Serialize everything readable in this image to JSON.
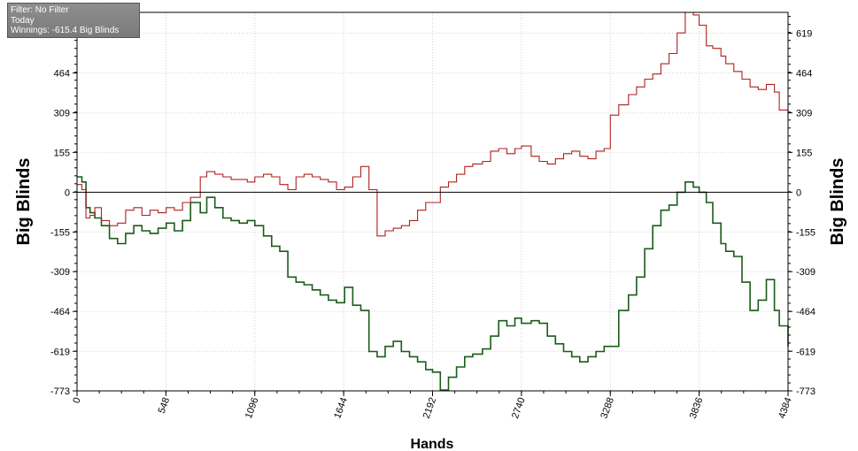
{
  "info_box": {
    "filter": "Filter: No Filter",
    "period": "Today",
    "winnings": "Winnings: -615.4 Big Blinds"
  },
  "colors": {
    "winnings_line": "#1a5c1a",
    "red_line": "#b02020",
    "grid": "#d4d4d4",
    "zero_line": "#000000"
  },
  "chart_data": {
    "type": "line",
    "xlabel": "Hands",
    "ylabel": "Big Blinds",
    "xlim": [
      0,
      4384
    ],
    "ylim": [
      -773,
      700
    ],
    "x_ticks": [
      "0",
      "548",
      "1096",
      "1644",
      "2192",
      "2740",
      "3288",
      "3836",
      "4384"
    ],
    "y_ticks": [
      "619",
      "464",
      "309",
      "155",
      "0",
      "-155",
      "-309",
      "-464",
      "-619",
      "-773"
    ],
    "grid": "dotted",
    "legend": "none",
    "series": [
      {
        "color": "#1a5c1a",
        "x": [
          0,
          30,
          55,
          80,
          110,
          150,
          200,
          250,
          300,
          350,
          400,
          450,
          500,
          550,
          600,
          650,
          700,
          760,
          800,
          850,
          900,
          950,
          1000,
          1050,
          1096,
          1150,
          1200,
          1250,
          1300,
          1350,
          1400,
          1450,
          1500,
          1550,
          1600,
          1650,
          1700,
          1750,
          1800,
          1850,
          1900,
          1950,
          2000,
          2050,
          2100,
          2150,
          2192,
          2240,
          2290,
          2340,
          2390,
          2440,
          2500,
          2550,
          2600,
          2650,
          2700,
          2740,
          2800,
          2850,
          2900,
          2950,
          3000,
          3050,
          3100,
          3150,
          3200,
          3250,
          3288,
          3340,
          3400,
          3450,
          3500,
          3550,
          3600,
          3650,
          3700,
          3750,
          3800,
          3836,
          3880,
          3920,
          3970,
          4000,
          4050,
          4100,
          4150,
          4200,
          4250,
          4300,
          4330,
          4384
        ],
        "y": [
          60,
          40,
          -60,
          -80,
          -100,
          -130,
          -180,
          -200,
          -160,
          -130,
          -150,
          -160,
          -140,
          -120,
          -150,
          -110,
          -40,
          -80,
          -20,
          -60,
          -100,
          -110,
          -120,
          -110,
          -130,
          -170,
          -210,
          -230,
          -330,
          -350,
          -360,
          -380,
          -400,
          -420,
          -430,
          -370,
          -440,
          -460,
          -620,
          -640,
          -600,
          -580,
          -620,
          -640,
          -660,
          -690,
          -700,
          -770,
          -720,
          -680,
          -640,
          -630,
          -610,
          -560,
          -500,
          -520,
          -490,
          -510,
          -500,
          -510,
          -560,
          -590,
          -620,
          -640,
          -660,
          -640,
          -620,
          -600,
          -600,
          -460,
          -400,
          -330,
          -220,
          -130,
          -70,
          -50,
          0,
          40,
          20,
          0,
          -40,
          -120,
          -200,
          -230,
          -250,
          -350,
          -460,
          -420,
          -340,
          -460,
          -520,
          -600
        ]
      },
      {
        "color": "#b02020",
        "x": [
          0,
          30,
          55,
          80,
          110,
          150,
          200,
          250,
          300,
          350,
          400,
          450,
          500,
          550,
          600,
          650,
          700,
          760,
          800,
          850,
          900,
          950,
          1000,
          1050,
          1096,
          1150,
          1200,
          1250,
          1300,
          1350,
          1400,
          1450,
          1500,
          1550,
          1600,
          1650,
          1700,
          1750,
          1800,
          1850,
          1900,
          1950,
          2000,
          2050,
          2100,
          2150,
          2192,
          2240,
          2290,
          2340,
          2390,
          2440,
          2500,
          2550,
          2600,
          2650,
          2700,
          2740,
          2800,
          2850,
          2900,
          2950,
          3000,
          3050,
          3100,
          3150,
          3200,
          3250,
          3288,
          3340,
          3400,
          3450,
          3500,
          3550,
          3600,
          3650,
          3700,
          3750,
          3800,
          3836,
          3880,
          3920,
          3970,
          4000,
          4050,
          4100,
          4150,
          4200,
          4250,
          4300,
          4330,
          4384
        ],
        "y": [
          30,
          10,
          -100,
          -90,
          -60,
          -110,
          -130,
          -120,
          -70,
          -60,
          -90,
          -70,
          -80,
          -60,
          -70,
          -40,
          -20,
          60,
          80,
          70,
          60,
          50,
          50,
          40,
          60,
          70,
          60,
          30,
          10,
          60,
          70,
          60,
          50,
          40,
          10,
          20,
          60,
          100,
          10,
          -170,
          -150,
          -140,
          -130,
          -110,
          -70,
          -40,
          -40,
          20,
          40,
          70,
          100,
          110,
          120,
          160,
          170,
          150,
          170,
          180,
          140,
          120,
          110,
          130,
          150,
          160,
          140,
          130,
          160,
          170,
          300,
          340,
          380,
          410,
          440,
          460,
          500,
          540,
          620,
          700,
          690,
          650,
          570,
          560,
          530,
          500,
          470,
          440,
          410,
          400,
          420,
          390,
          320,
          290
        ]
      }
    ]
  }
}
